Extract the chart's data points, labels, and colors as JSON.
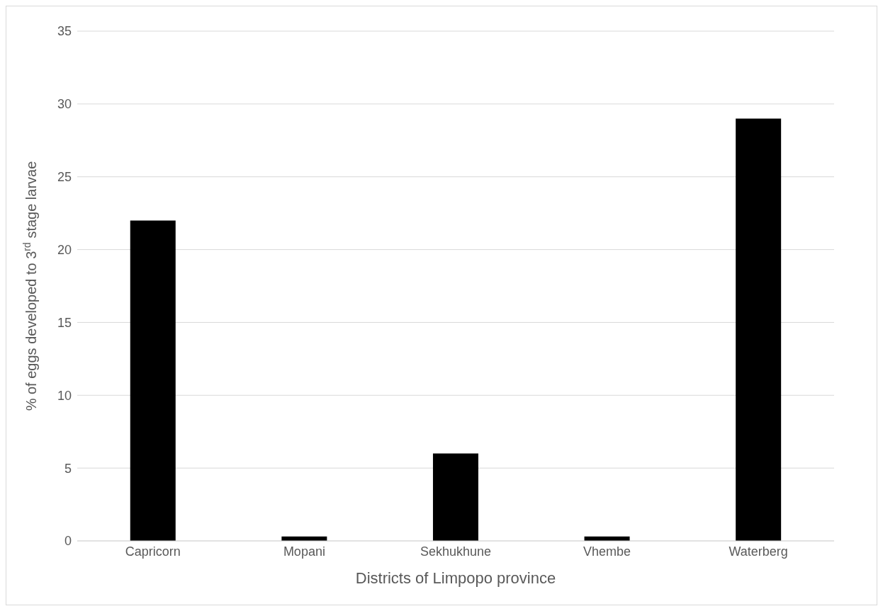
{
  "chart_data": {
    "type": "bar",
    "xlabel": "Districts of Limpopo province",
    "ylabel": "% of eggs developed to 3$^{rd}$ stage larvae",
    "categories": [
      "Capricorn",
      "Mopani",
      "Sekhukhune",
      "Vhembe",
      "Waterberg"
    ],
    "values": [
      22,
      0.3,
      6,
      0.3,
      29
    ],
    "color": "#000000",
    "ylim": [
      0,
      35
    ],
    "yticks": [
      0,
      5,
      10,
      15,
      20,
      25,
      30,
      35
    ],
    "grid": "y"
  }
}
